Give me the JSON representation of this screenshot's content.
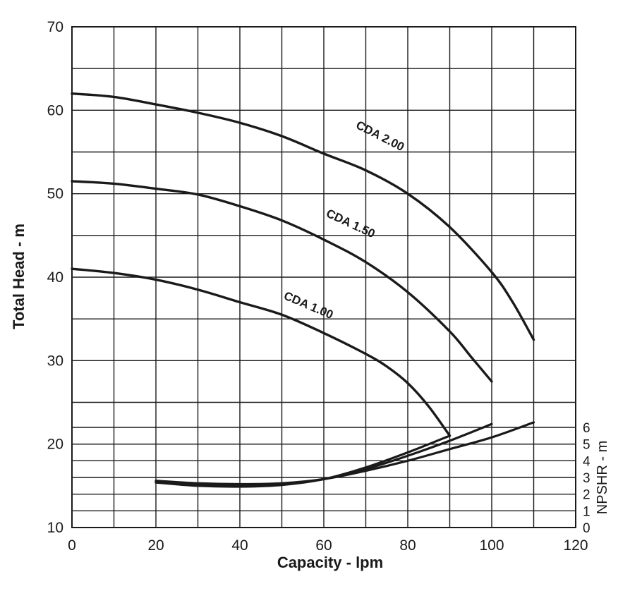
{
  "chart_data": {
    "type": "line",
    "title": "",
    "xlabel": "Capacity - lpm",
    "ylabel": "Total Head - m",
    "y2label": "NPSHR - m",
    "xlim": [
      0,
      120
    ],
    "ylim": [
      10,
      70
    ],
    "xticks": [
      "0",
      "20",
      "40",
      "60",
      "80",
      "100",
      "120"
    ],
    "yticks": [
      "10",
      "20",
      "30",
      "40",
      "50",
      "60",
      "70"
    ],
    "y2ticks": [
      "0",
      "1",
      "2",
      "3",
      "4",
      "5",
      "6"
    ],
    "grid": true,
    "legend": "none",
    "line_color": "#1a1a1a",
    "series": [
      {
        "name": "CDA 2.00",
        "x": [
          0,
          10,
          20,
          30,
          40,
          50,
          60,
          70,
          80,
          90,
          100,
          105,
          110
        ],
        "y": [
          62.0,
          61.6,
          60.7,
          59.7,
          58.5,
          56.9,
          54.8,
          52.8,
          50.0,
          46.0,
          40.6,
          37.0,
          32.5
        ]
      },
      {
        "name": "CDA 1.50",
        "x": [
          0,
          10,
          20,
          30,
          40,
          50,
          60,
          70,
          80,
          90,
          95,
          100
        ],
        "y": [
          51.5,
          51.2,
          50.6,
          49.9,
          48.5,
          46.8,
          44.5,
          41.8,
          38.2,
          33.5,
          30.5,
          27.5
        ]
      },
      {
        "name": "CDA 1.00",
        "x": [
          0,
          10,
          20,
          30,
          40,
          50,
          60,
          70,
          75,
          80,
          85,
          90
        ],
        "y": [
          41.0,
          40.5,
          39.7,
          38.5,
          37.0,
          35.5,
          33.3,
          30.8,
          29.3,
          27.3,
          24.5,
          21.0
        ]
      }
    ],
    "npshr_series": [
      {
        "x": [
          20,
          30,
          40,
          50,
          60,
          70,
          80,
          90,
          100,
          110
        ],
        "y": [
          2.8,
          2.65,
          2.6,
          2.65,
          2.9,
          3.4,
          4.0,
          4.7,
          5.4,
          6.3
        ]
      },
      {
        "x": [
          20,
          30,
          40,
          50,
          60,
          70,
          80,
          90,
          100
        ],
        "y": [
          2.75,
          2.55,
          2.5,
          2.6,
          2.9,
          3.5,
          4.3,
          5.2,
          6.2
        ]
      },
      {
        "x": [
          20,
          30,
          40,
          50,
          60,
          70,
          80,
          90
        ],
        "y": [
          2.7,
          2.5,
          2.45,
          2.55,
          2.9,
          3.6,
          4.5,
          5.5
        ]
      }
    ],
    "npshr_ylim": [
      0,
      6
    ]
  }
}
